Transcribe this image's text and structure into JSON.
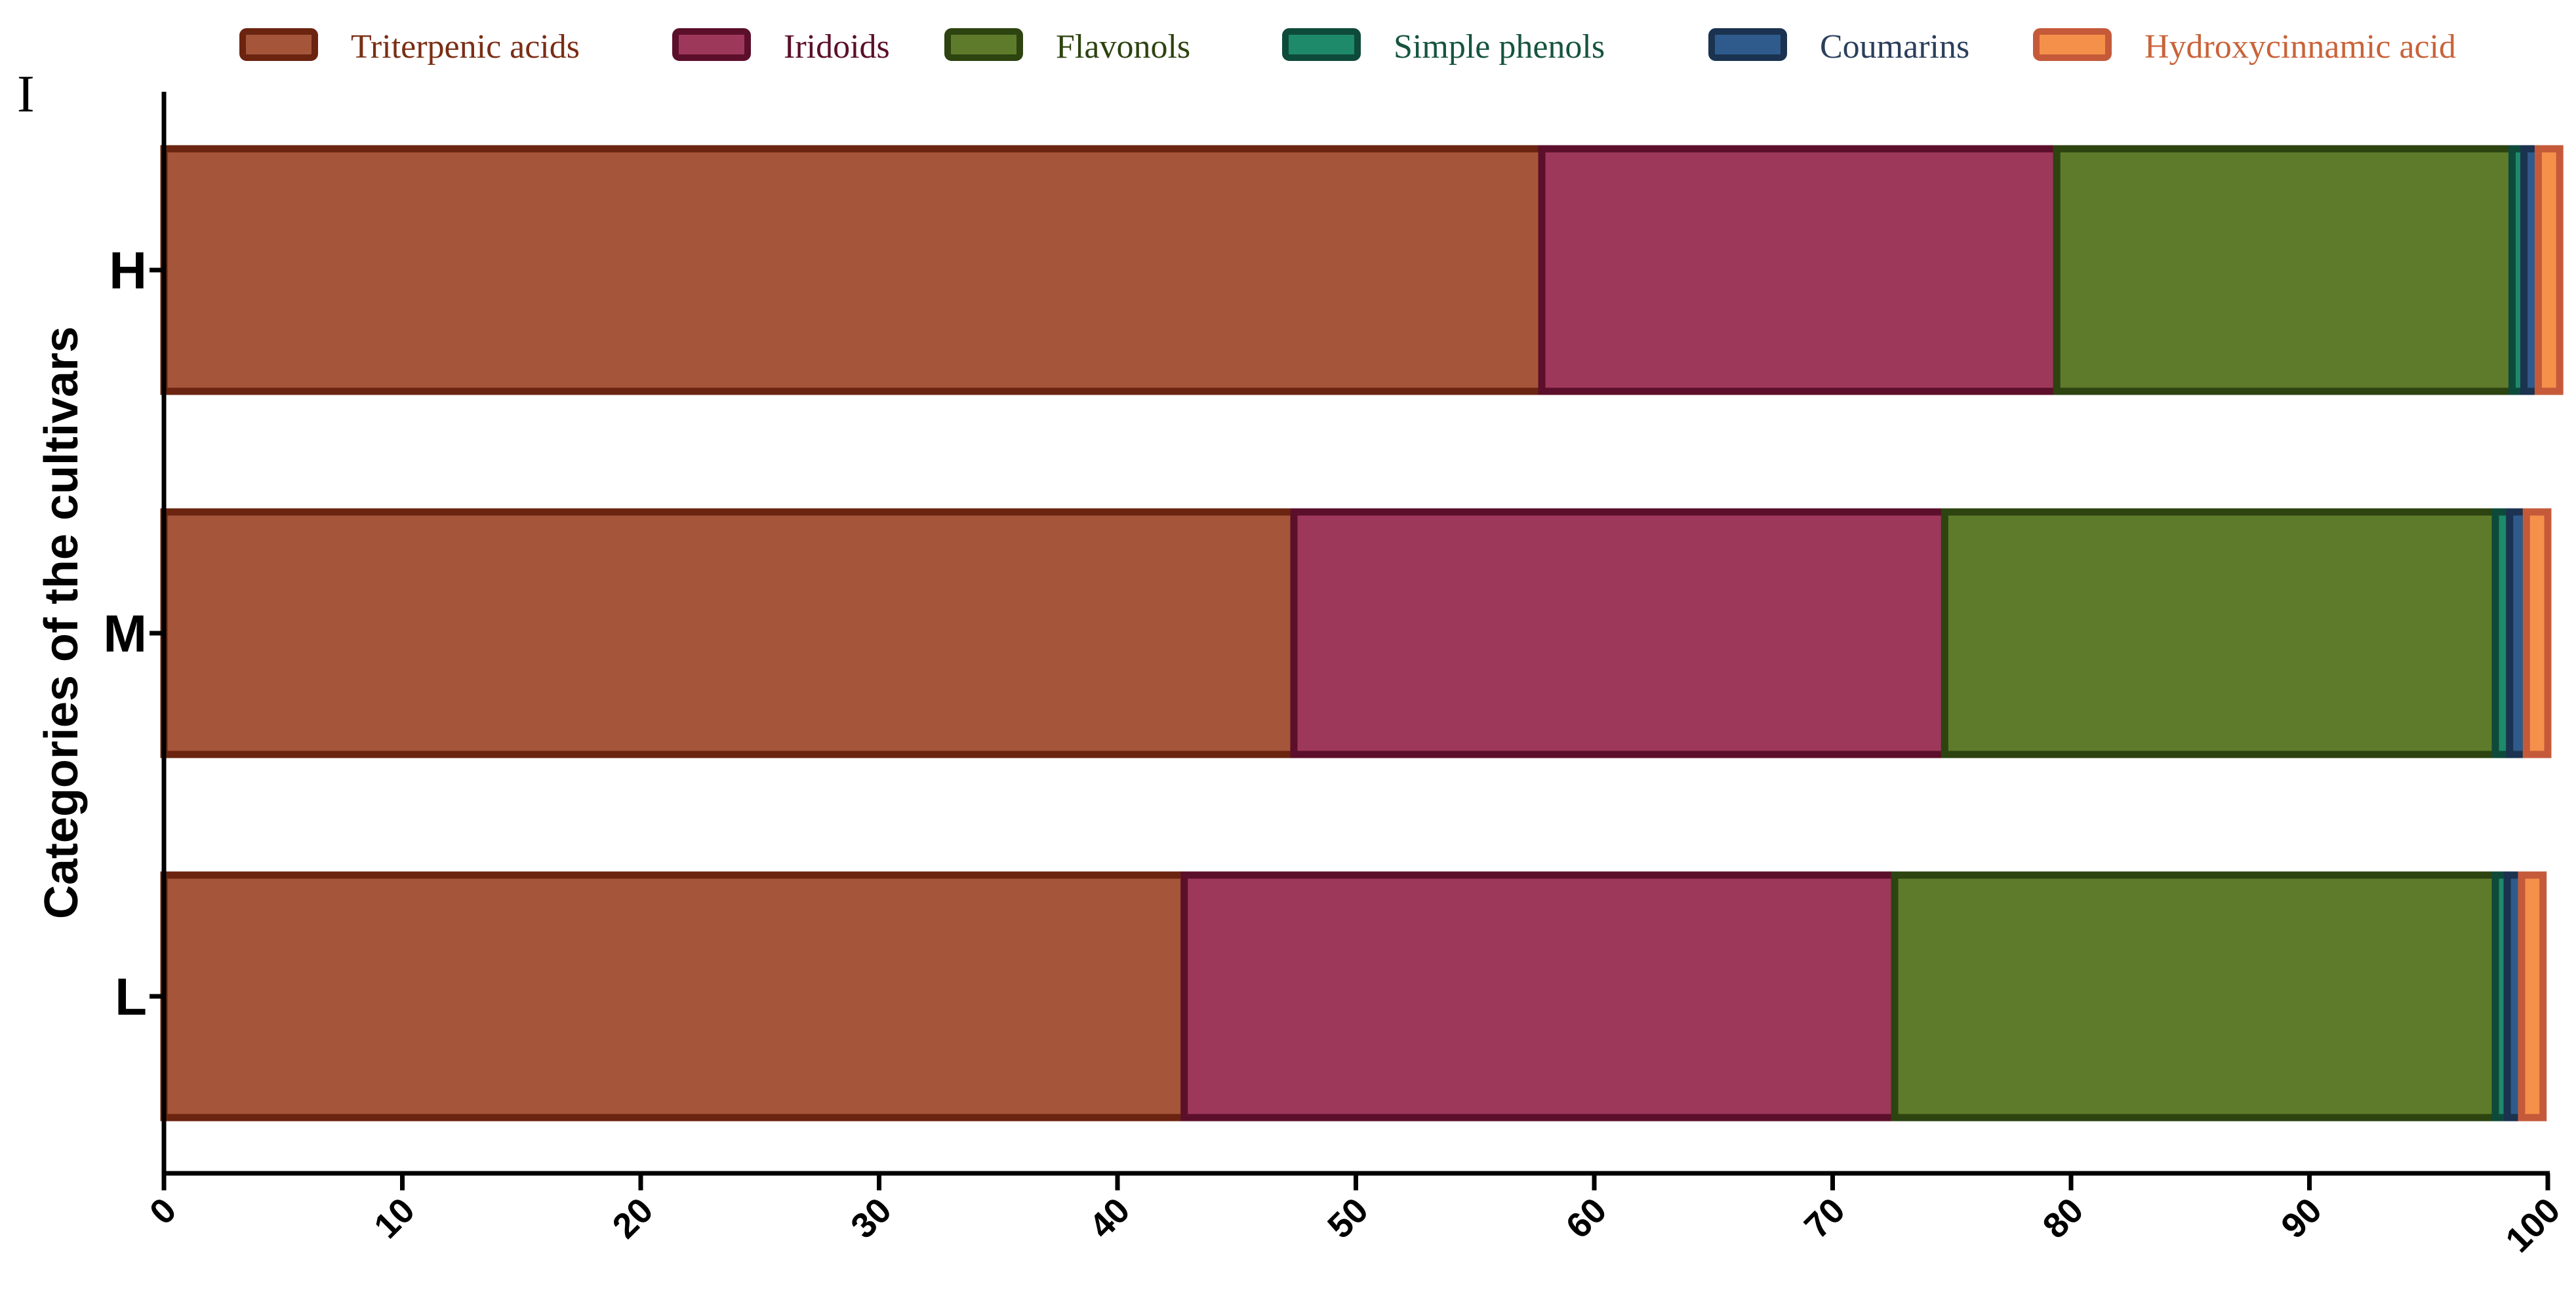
{
  "panel_label": "I",
  "chart_data": {
    "type": "bar",
    "orientation": "horizontal",
    "stacked": true,
    "title": "",
    "xlabel": "",
    "ylabel": "Categories of the cultivars",
    "xlim": [
      0,
      100
    ],
    "x_ticks": [
      "0",
      "10",
      "20",
      "30",
      "40",
      "50",
      "60",
      "70",
      "80",
      "90",
      "100"
    ],
    "categories": [
      "H",
      "M",
      "L"
    ],
    "legend_position": "top",
    "grid": false,
    "series": [
      {
        "name": "Triterpenic acids",
        "fill": "#A5563A",
        "stroke": "#6B2410",
        "text_color": "#7A2E14",
        "values": [
          57.8,
          47.4,
          42.8
        ]
      },
      {
        "name": "Iridoids",
        "fill": "#9E385B",
        "stroke": "#5C0F2A",
        "text_color": "#5C0F2A",
        "values": [
          21.6,
          27.3,
          29.8
        ]
      },
      {
        "name": "Flavonols",
        "fill": "#5E7B2B",
        "stroke": "#2D4310",
        "text_color": "#2D4310",
        "values": [
          19.1,
          23.1,
          25.2
        ]
      },
      {
        "name": "Simple phenols",
        "fill": "#1E8A6A",
        "stroke": "#0E4A3A",
        "text_color": "#16543F",
        "values": [
          0.5,
          0.6,
          0.5
        ]
      },
      {
        "name": "Coumarins",
        "fill": "#2F5B8C",
        "stroke": "#1B3350",
        "text_color": "#2B3F5C",
        "values": [
          0.6,
          0.7,
          0.6
        ]
      },
      {
        "name": "Hydroxycinnamic acid",
        "fill": "#F5904A",
        "stroke": "#C55A3A",
        "text_color": "#C9633A",
        "values": [
          0.9,
          0.9,
          0.9
        ]
      }
    ]
  }
}
